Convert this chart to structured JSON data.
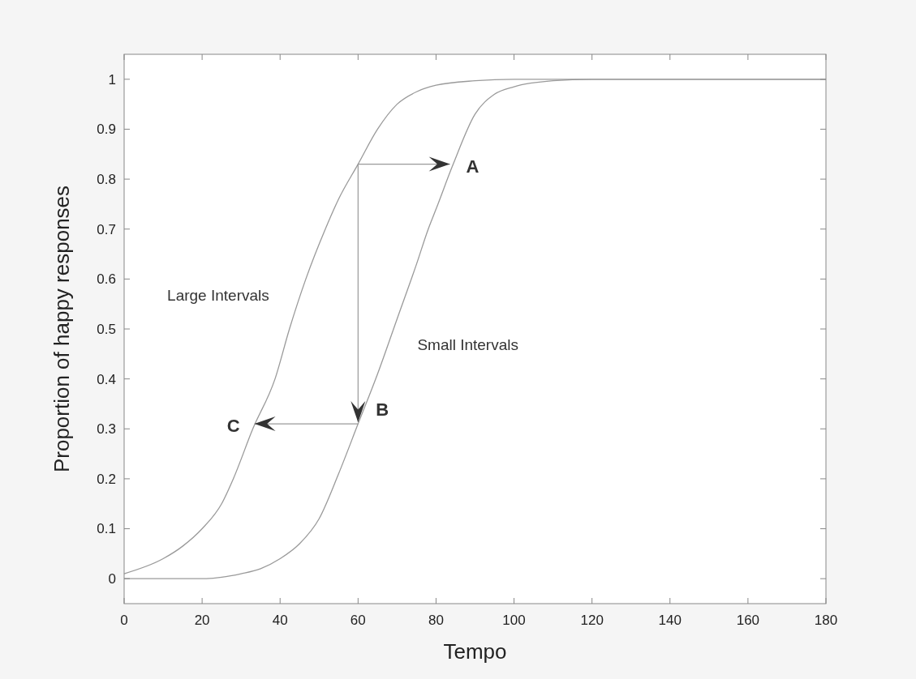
{
  "chart_data": {
    "type": "line",
    "xlabel": "Tempo",
    "ylabel": "Proportion of happy responses",
    "xlim": [
      0,
      180
    ],
    "xticks": [
      0,
      20,
      40,
      60,
      80,
      100,
      120,
      140,
      160,
      180
    ],
    "ylim": [
      -0.05,
      1.05
    ],
    "yticks": [
      0,
      0.1,
      0.2,
      0.3,
      0.4,
      0.5,
      0.6,
      0.7,
      0.8,
      0.9,
      1
    ],
    "grid": false,
    "series": [
      {
        "name": "Large Intervals",
        "color": "#9a9a9a",
        "x": [
          0,
          10,
          15,
          20,
          25,
          28,
          33,
          38.7,
          42.4,
          46.6,
          51.6,
          55,
          60,
          65,
          70,
          75,
          80,
          90,
          100,
          180
        ],
        "values": [
          0.01,
          0.04,
          0.065,
          0.1,
          0.15,
          0.2,
          0.3,
          0.4,
          0.5,
          0.6,
          0.7,
          0.76,
          0.83,
          0.9,
          0.95,
          0.975,
          0.988,
          0.997,
          1,
          1
        ]
      },
      {
        "name": "Small Intervals",
        "color": "#9a9a9a",
        "x": [
          0,
          20,
          25,
          30,
          35,
          40,
          45,
          50,
          55,
          60,
          65,
          70,
          75,
          78,
          80,
          84.4,
          90,
          95,
          100,
          110,
          120,
          180
        ],
        "values": [
          0,
          0,
          0.003,
          0.01,
          0.02,
          0.04,
          0.07,
          0.12,
          0.21,
          0.31,
          0.41,
          0.52,
          0.63,
          0.7,
          0.74,
          0.83,
          0.93,
          0.97,
          0.985,
          0.997,
          1,
          1
        ]
      }
    ],
    "annotations": [
      {
        "text": "A",
        "x": 84.4,
        "y": 0.83
      },
      {
        "text": "B",
        "x": 60,
        "y": 0.31
      },
      {
        "text": "C",
        "x": 33,
        "y": 0.31
      }
    ]
  }
}
